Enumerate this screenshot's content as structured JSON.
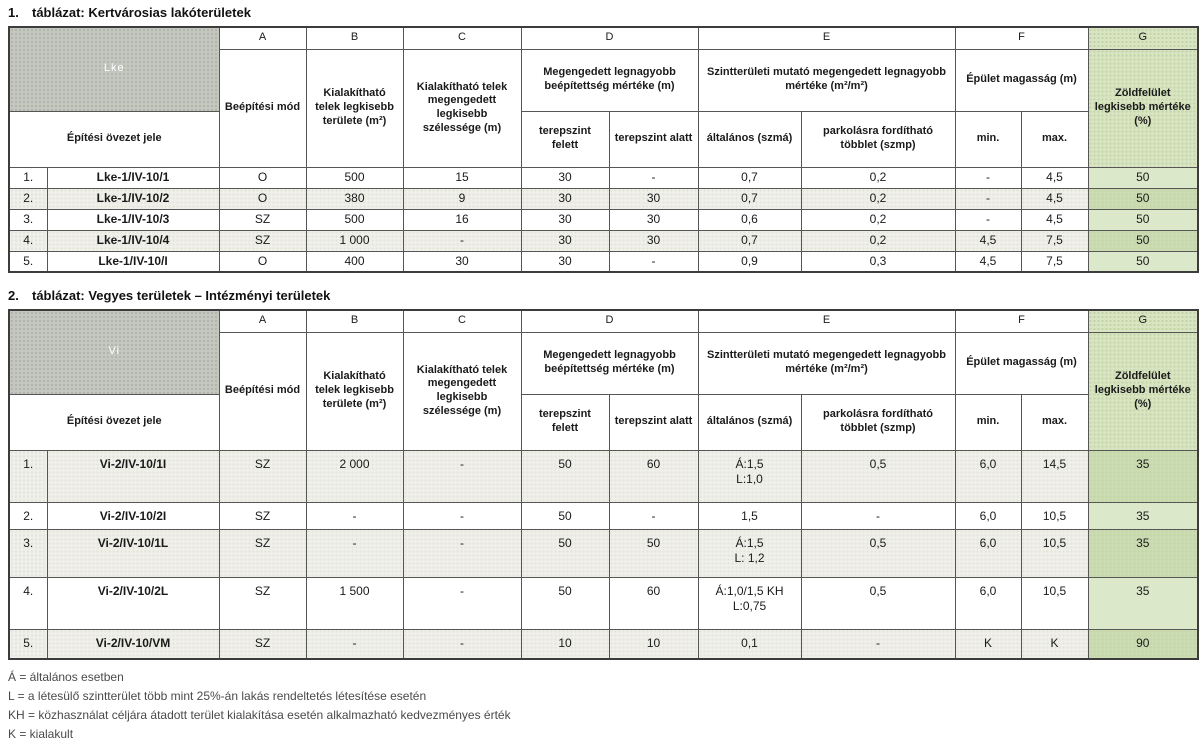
{
  "colors": {
    "corner_bg": "#c3c7bf",
    "green_header": "#d8e4c2",
    "green_cell_light": "#dce8ca",
    "green_cell_dark": "#cbdcb3",
    "row_stripe": "#f0f0ea",
    "border": "#3c3c3c"
  },
  "tables": [
    {
      "number": "1.",
      "title": "táblázat: Kertvárosias lakóterületek",
      "zone_code": "Lke",
      "zone_row_label": "Építési övezet jele",
      "letters": [
        "A",
        "B",
        "C",
        "D",
        "E",
        "F",
        "G"
      ],
      "headers": {
        "mode": "Beépítési mód",
        "area": "Kialakítható telek legkisebb területe (m²)",
        "width": "Kialakítható telek megengedett legkisebb szélessége (m)",
        "coverage": "Megengedett legnagyobb beépítettség mértéke (m)",
        "above": "terepszint felett",
        "below": "terepszint alatt",
        "far": "Szintterületi mutató megengedett legnagyobb mértéke (m²/m²)",
        "far_general": "általános (szmá)",
        "far_parking": "parkolásra fordítható többlet (szmp)",
        "height": "Épület magasság (m)",
        "min": "min.",
        "max": "max.",
        "green": "Zöldfelület legkisebb mértéke (%)"
      },
      "rows": [
        {
          "num": "1.",
          "name": "Lke-1/IV-10/1",
          "mode": "O",
          "area": "500",
          "width": "15",
          "above": "30",
          "below": "-",
          "szma": "0,7",
          "szmp": "0,2",
          "min": "-",
          "max": "4,5",
          "green": "50"
        },
        {
          "num": "2.",
          "name": "Lke-1/IV-10/2",
          "mode": "O",
          "area": "380",
          "width": "9",
          "above": "30",
          "below": "30",
          "szma": "0,7",
          "szmp": "0,2",
          "min": "-",
          "max": "4,5",
          "green": "50"
        },
        {
          "num": "3.",
          "name": "Lke-1/IV-10/3",
          "mode": "SZ",
          "area": "500",
          "width": "16",
          "above": "30",
          "below": "30",
          "szma": "0,6",
          "szmp": "0,2",
          "min": "-",
          "max": "4,5",
          "green": "50"
        },
        {
          "num": "4.",
          "name": "Lke-1/IV-10/4",
          "mode": "SZ",
          "area": "1 000",
          "width": "-",
          "above": "30",
          "below": "30",
          "szma": "0,7",
          "szmp": "0,2",
          "min": "4,5",
          "max": "7,5",
          "green": "50"
        },
        {
          "num": "5.",
          "name": "Lke-1/IV-10/I",
          "mode": "O",
          "area": "400",
          "width": "30",
          "above": "30",
          "below": "-",
          "szma": "0,9",
          "szmp": "0,3",
          "min": "4,5",
          "max": "7,5",
          "green": "50"
        }
      ]
    },
    {
      "number": "2.",
      "title": "táblázat: Vegyes területek – Intézményi területek",
      "zone_code": "Vi",
      "zone_row_label": "Építési övezet jele",
      "letters": [
        "A",
        "B",
        "C",
        "D",
        "E",
        "F",
        "G"
      ],
      "headers": {
        "mode": "Beépítési mód",
        "area": "Kialakítható telek legkisebb területe (m²)",
        "width": "Kialakítható telek megengedett legkisebb szélessége (m)",
        "coverage": "Megengedett legnagyobb beépítettség mértéke (m)",
        "above": "terepszint felett",
        "below": "terepszint alatt",
        "far": "Szintterületi mutató megengedett legnagyobb mértéke (m²/m²)",
        "far_general": "általános (szmá)",
        "far_parking": "parkolásra fordítható többlet (szmp)",
        "height": "Épület magasság (m)",
        "min": "min.",
        "max": "max.",
        "green": "Zöldfelület legkisebb mértéke (%)"
      },
      "rows": [
        {
          "num": "1.",
          "name": "Vi-2/IV-10/1I",
          "mode": "SZ",
          "area": "2 000",
          "width": "-",
          "above": "50",
          "below": "60",
          "szma": "Á:1,5\nL:1,0",
          "szmp": "0,5",
          "min": "6,0",
          "max": "14,5",
          "green": "35"
        },
        {
          "num": "2.",
          "name": "Vi-2/IV-10/2I",
          "mode": "SZ",
          "area": "-",
          "width": "-",
          "above": "50",
          "below": "-",
          "szma": "1,5",
          "szmp": "-",
          "min": "6,0",
          "max": "10,5",
          "green": "35"
        },
        {
          "num": "3.",
          "name": "Vi-2/IV-10/1L",
          "mode": "SZ",
          "area": "-",
          "width": "-",
          "above": "50",
          "below": "50",
          "szma": "Á:1,5\nL: 1,2",
          "szmp": "0,5",
          "min": "6,0",
          "max": "10,5",
          "green": "35"
        },
        {
          "num": "4.",
          "name": "Vi-2/IV-10/2L",
          "mode": "SZ",
          "area": "1 500",
          "width": "-",
          "above": "50",
          "below": "60",
          "szma": "Á:1,0/1,5 KH\nL:0,75",
          "szmp": "0,5",
          "min": "6,0",
          "max": "10,5",
          "green": "35"
        },
        {
          "num": "5.",
          "name": "Vi-2/IV-10/VM",
          "mode": "SZ",
          "area": "-",
          "width": "-",
          "above": "10",
          "below": "10",
          "szma": "0,1",
          "szmp": "-",
          "min": "K",
          "max": "K",
          "green": "90"
        }
      ]
    }
  ],
  "footnotes": [
    "Á = általános esetben",
    "L = a létesülő szintterület több mint 25%-án lakás rendeltetés létesítése esetén",
    "KH = közhasználat céljára átadott terület kialakítása esetén alkalmazható kedvezményes érték",
    "K = kialakult"
  ]
}
